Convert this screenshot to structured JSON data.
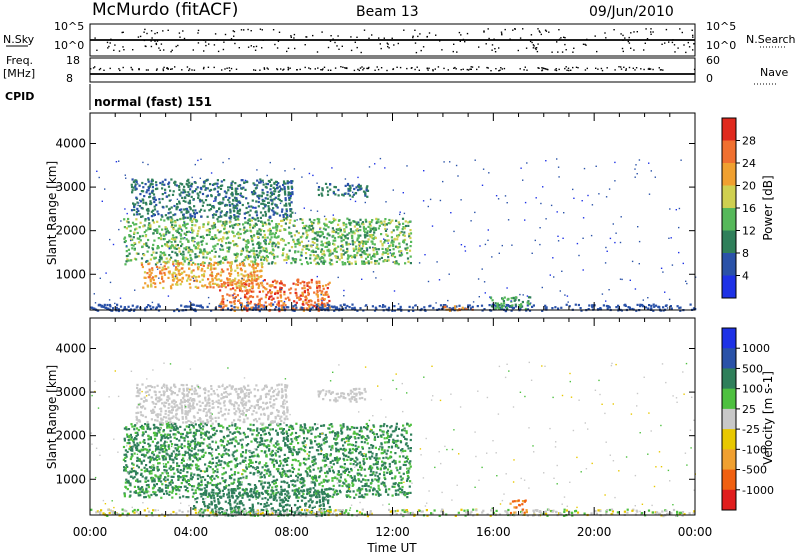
{
  "header": {
    "station": "McMurdo (fitACF)",
    "beam": "Beam 13",
    "date": "09/Jun/2010"
  },
  "top_panel": {
    "left_labels": {
      "nsky": "N.Sky",
      "freq": "Freq.",
      "freq_unit": "[MHz]",
      "cpid": "CPID"
    },
    "right_labels": {
      "nsearch": "N.Search",
      "nave": "Nave"
    },
    "nsky_ticks": [
      "10^5",
      "10^0"
    ],
    "nsearch_ticks": [
      "10^5",
      "10^0"
    ],
    "freq_ticks": [
      "18",
      "8"
    ],
    "nave_ticks": [
      "60",
      "0"
    ],
    "cpid_text": "normal (fast) 151"
  },
  "colors": {
    "power_scale": [
      "#1e32e6",
      "#2a52a8",
      "#2f7f5a",
      "#56b85a",
      "#cfd050",
      "#f0a030",
      "#f07030",
      "#e02a1e"
    ],
    "velocity_scale": [
      "#1e32e6",
      "#2a52a8",
      "#2f7f5a",
      "#4ec040",
      "#c8c8c8",
      "#e8c800",
      "#f0a030",
      "#f06010",
      "#e01e1e"
    ]
  },
  "chart_data": [
    {
      "type": "heatmap",
      "panel": "power",
      "ylabel": "Slant Range [km]",
      "yticks": [
        "1000",
        "2000",
        "3000",
        "4000"
      ],
      "ylim": [
        180,
        4700
      ],
      "xlim": [
        0,
        24
      ],
      "xticks": [
        "00:00",
        "04:00",
        "08:00",
        "12:00",
        "16:00",
        "20:00",
        "00:00"
      ],
      "colorbar": {
        "label": "Power [dB]",
        "ticks": [
          "4",
          "8",
          "12",
          "16",
          "20",
          "24",
          "28"
        ],
        "range": [
          0,
          32
        ]
      },
      "regions": [
        {
          "t": [
            1.3,
            12.7
          ],
          "r": [
            1250,
            2300
          ],
          "v": [
            10,
            18
          ]
        },
        {
          "t": [
            5.0,
            9.5
          ],
          "r": [
            180,
            900
          ],
          "v": [
            22,
            30
          ]
        },
        {
          "t": [
            2.0,
            6.8
          ],
          "r": [
            700,
            1300
          ],
          "v": [
            18,
            26
          ]
        },
        {
          "t": [
            9.0,
            11.0
          ],
          "r": [
            2800,
            3100
          ],
          "v": [
            6,
            12
          ]
        },
        {
          "t": [
            1.6,
            8.0
          ],
          "r": [
            2300,
            3200
          ],
          "v": [
            6,
            12
          ]
        },
        {
          "t": [
            0.0,
            24.0
          ],
          "r": [
            180,
            330
          ],
          "v": [
            4,
            8
          ]
        },
        {
          "t": [
            15.8,
            17.5
          ],
          "r": [
            220,
            500
          ],
          "v": [
            10,
            16
          ]
        },
        {
          "t": [
            14.0,
            15.2
          ],
          "r": [
            180,
            300
          ],
          "v": [
            20,
            26
          ]
        }
      ]
    },
    {
      "type": "heatmap",
      "panel": "velocity",
      "ylabel": "Slant Range [km]",
      "yticks": [
        "1000",
        "2000",
        "3000",
        "4000"
      ],
      "ylim": [
        180,
        4700
      ],
      "xlim": [
        0,
        24
      ],
      "xticks": [
        "00:00",
        "04:00",
        "08:00",
        "12:00",
        "16:00",
        "20:00",
        "00:00"
      ],
      "xlabel": "Time UT",
      "colorbar": {
        "label": "Velocity [m s-1]",
        "ticks": [
          "1000",
          "500",
          "100",
          "25",
          "-25",
          "-100",
          "-500",
          "-1000"
        ],
        "range": [
          -1000,
          1000
        ]
      },
      "regions": [
        {
          "t": [
            1.3,
            12.7
          ],
          "r": [
            600,
            2300
          ],
          "v": [
            50,
            200
          ]
        },
        {
          "t": [
            4.0,
            9.5
          ],
          "r": [
            180,
            800
          ],
          "v": [
            100,
            300
          ]
        },
        {
          "t": [
            1.8,
            7.8
          ],
          "r": [
            2300,
            3200
          ],
          "v": [
            -20,
            20
          ]
        },
        {
          "t": [
            9.0,
            11.0
          ],
          "r": [
            2800,
            3100
          ],
          "v": [
            -20,
            20
          ]
        },
        {
          "t": [
            0.0,
            24.0
          ],
          "r": [
            180,
            330
          ],
          "v": [
            -50,
            50
          ]
        },
        {
          "t": [
            16.6,
            17.3
          ],
          "r": [
            250,
            550
          ],
          "v": [
            -700,
            -300
          ]
        }
      ]
    }
  ]
}
